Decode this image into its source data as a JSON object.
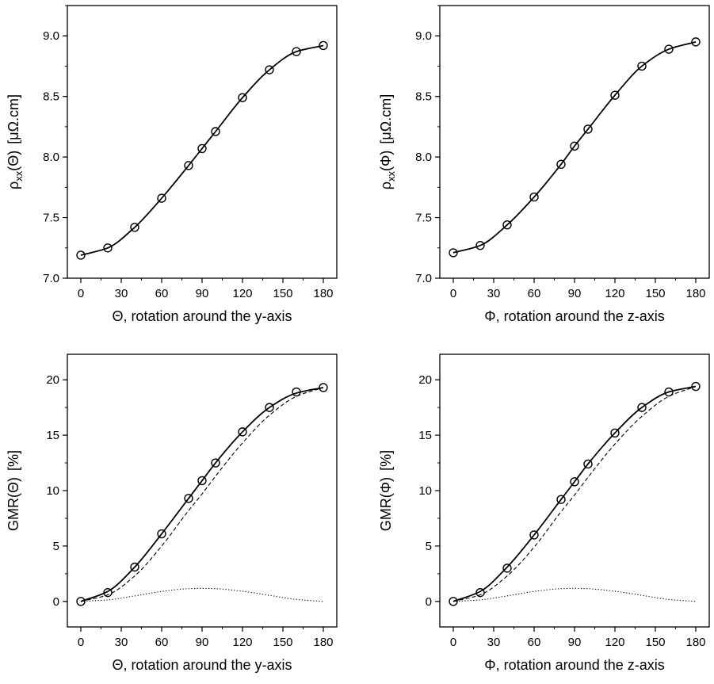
{
  "chart_data": [
    {
      "type": "line",
      "xlabel": "Θ, rotation around the y-axis",
      "ylabel": "ρxx(Θ)  [μΩ.cm]",
      "ylabel_parts": {
        "main": "ρ",
        "sub": "xx",
        "arg": "(Θ)",
        "unit": "[μΩ.cm]"
      },
      "xlim": [
        -10,
        190
      ],
      "ylim": [
        7.0,
        9.25
      ],
      "xticks": [
        0,
        30,
        60,
        90,
        120,
        150,
        180
      ],
      "yticks": [
        7.0,
        7.5,
        8.0,
        8.5,
        9.0
      ],
      "grid": false,
      "markers": {
        "x": [
          0,
          20,
          40,
          60,
          80,
          90,
          100,
          120,
          140,
          160,
          180
        ],
        "y": [
          7.19,
          7.25,
          7.42,
          7.66,
          7.93,
          8.07,
          8.21,
          8.49,
          8.72,
          8.87,
          8.92
        ]
      },
      "series": [
        {
          "style": "solid",
          "x": [
            0,
            20,
            40,
            60,
            80,
            90,
            100,
            120,
            140,
            160,
            180
          ],
          "y": [
            7.19,
            7.25,
            7.42,
            7.66,
            7.93,
            8.07,
            8.21,
            8.49,
            8.72,
            8.87,
            8.92
          ]
        }
      ]
    },
    {
      "type": "line",
      "xlabel": "Φ, rotation around the z-axis",
      "ylabel": "ρxx(Φ)  [μΩ.cm]",
      "ylabel_parts": {
        "main": "ρ",
        "sub": "xx",
        "arg": "(Φ)",
        "unit": "[μΩ.cm]"
      },
      "xlim": [
        -10,
        190
      ],
      "ylim": [
        7.0,
        9.25
      ],
      "xticks": [
        0,
        30,
        60,
        90,
        120,
        150,
        180
      ],
      "yticks": [
        7.0,
        7.5,
        8.0,
        8.5,
        9.0
      ],
      "grid": false,
      "markers": {
        "x": [
          0,
          20,
          40,
          60,
          80,
          90,
          100,
          120,
          140,
          160,
          180
        ],
        "y": [
          7.21,
          7.27,
          7.44,
          7.67,
          7.94,
          8.09,
          8.23,
          8.51,
          8.75,
          8.89,
          8.95
        ]
      },
      "series": [
        {
          "style": "solid",
          "x": [
            0,
            20,
            40,
            60,
            80,
            90,
            100,
            120,
            140,
            160,
            180
          ],
          "y": [
            7.21,
            7.27,
            7.44,
            7.67,
            7.94,
            8.09,
            8.23,
            8.51,
            8.75,
            8.89,
            8.95
          ]
        }
      ]
    },
    {
      "type": "line",
      "xlabel": "Θ, rotation around the y-axis",
      "ylabel": "GMR(Θ)  [%]",
      "ylabel_parts": {
        "main": "GMR",
        "sub": "",
        "arg": "(Θ)",
        "unit": "[%]"
      },
      "xlim": [
        -10,
        190
      ],
      "ylim": [
        -2.3,
        22.3
      ],
      "xticks": [
        0,
        30,
        60,
        90,
        120,
        150,
        180
      ],
      "yticks": [
        0,
        5,
        10,
        15,
        20
      ],
      "grid": false,
      "markers": {
        "x": [
          0,
          20,
          40,
          60,
          80,
          90,
          100,
          120,
          140,
          160,
          180
        ],
        "y": [
          0.0,
          0.8,
          3.1,
          6.1,
          9.3,
          10.9,
          12.5,
          15.3,
          17.5,
          18.9,
          19.3
        ]
      },
      "series": [
        {
          "style": "solid",
          "x": [
            0,
            20,
            40,
            60,
            80,
            90,
            100,
            120,
            140,
            160,
            180
          ],
          "y": [
            0.0,
            0.9,
            3.1,
            6.1,
            9.3,
            10.9,
            12.5,
            15.3,
            17.5,
            18.8,
            19.3
          ]
        },
        {
          "style": "dashed",
          "x": [
            0,
            20,
            40,
            60,
            80,
            90,
            100,
            120,
            140,
            160,
            180
          ],
          "y": [
            0.0,
            0.6,
            2.3,
            5.0,
            8.2,
            9.7,
            11.3,
            14.3,
            16.8,
            18.5,
            19.3
          ]
        },
        {
          "style": "dotted",
          "x": [
            0,
            20,
            40,
            60,
            80,
            90,
            100,
            120,
            140,
            160,
            180
          ],
          "y": [
            0.0,
            0.14,
            0.5,
            0.9,
            1.15,
            1.18,
            1.15,
            0.92,
            0.55,
            0.18,
            0.0
          ]
        }
      ]
    },
    {
      "type": "line",
      "xlabel": "Φ, rotation around the z-axis",
      "ylabel": "GMR(Φ)  [%]",
      "ylabel_parts": {
        "main": "GMR",
        "sub": "",
        "arg": "(Φ)",
        "unit": "[%]"
      },
      "xlim": [
        -10,
        190
      ],
      "ylim": [
        -2.3,
        22.3
      ],
      "xticks": [
        0,
        30,
        60,
        90,
        120,
        150,
        180
      ],
      "yticks": [
        0,
        5,
        10,
        15,
        20
      ],
      "grid": false,
      "markers": {
        "x": [
          0,
          20,
          40,
          60,
          80,
          90,
          100,
          120,
          140,
          160,
          180
        ],
        "y": [
          0.0,
          0.8,
          3.0,
          6.0,
          9.2,
          10.8,
          12.4,
          15.2,
          17.5,
          18.9,
          19.4
        ]
      },
      "series": [
        {
          "style": "solid",
          "x": [
            0,
            20,
            40,
            60,
            80,
            90,
            100,
            120,
            140,
            160,
            180
          ],
          "y": [
            0.0,
            0.9,
            3.1,
            6.0,
            9.2,
            10.8,
            12.4,
            15.2,
            17.5,
            18.9,
            19.4
          ]
        },
        {
          "style": "dashed",
          "x": [
            0,
            20,
            40,
            60,
            80,
            90,
            100,
            120,
            140,
            160,
            180
          ],
          "y": [
            0.0,
            0.6,
            2.3,
            4.9,
            8.1,
            9.6,
            11.2,
            14.2,
            16.7,
            18.5,
            19.4
          ]
        },
        {
          "style": "dotted",
          "x": [
            0,
            20,
            40,
            60,
            80,
            90,
            100,
            120,
            140,
            160,
            180
          ],
          "y": [
            0.0,
            0.14,
            0.5,
            0.9,
            1.15,
            1.18,
            1.15,
            0.92,
            0.55,
            0.18,
            0.0
          ]
        }
      ]
    }
  ]
}
